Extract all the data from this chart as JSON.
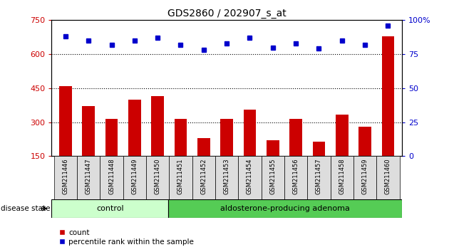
{
  "title": "GDS2860 / 202907_s_at",
  "categories": [
    "GSM211446",
    "GSM211447",
    "GSM211448",
    "GSM211449",
    "GSM211450",
    "GSM211451",
    "GSM211452",
    "GSM211453",
    "GSM211454",
    "GSM211455",
    "GSM211456",
    "GSM211457",
    "GSM211458",
    "GSM211459",
    "GSM211460"
  ],
  "counts": [
    460,
    370,
    315,
    400,
    415,
    315,
    230,
    315,
    355,
    220,
    315,
    215,
    335,
    280,
    680
  ],
  "percentiles": [
    88,
    85,
    82,
    85,
    87,
    82,
    78,
    83,
    87,
    80,
    83,
    79,
    85,
    82,
    96
  ],
  "ylim_left": [
    150,
    750
  ],
  "ylim_right": [
    0,
    100
  ],
  "yticks_left": [
    150,
    300,
    450,
    600,
    750
  ],
  "yticks_right": [
    0,
    25,
    50,
    75,
    100
  ],
  "bar_color": "#cc0000",
  "dot_color": "#0000cc",
  "bg_color": "#ffffff",
  "control_color": "#ccffcc",
  "adenoma_color": "#55cc55",
  "control_label": "control",
  "adenoma_label": "aldosterone-producing adenoma",
  "disease_label": "disease state",
  "legend_count": "count",
  "legend_percentile": "percentile rank within the sample",
  "control_count": 5,
  "total_count": 15,
  "axis_label_color_left": "#cc0000",
  "axis_label_color_right": "#0000cc",
  "gridline_vals": [
    300,
    450,
    600
  ],
  "ticklabel_bg": "#dddddd"
}
